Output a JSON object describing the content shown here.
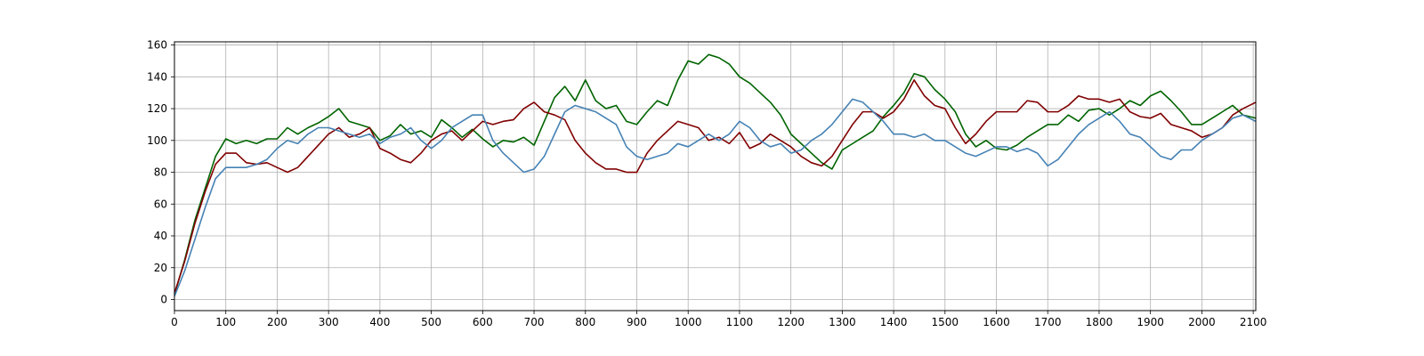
{
  "chart_data": {
    "type": "line",
    "title": "",
    "xlabel": "",
    "ylabel": "",
    "xlim": [
      0,
      2105
    ],
    "ylim": [
      -7,
      162
    ],
    "grid": true,
    "legend": "none",
    "x_ticks": [
      0,
      100,
      200,
      300,
      400,
      500,
      600,
      700,
      800,
      900,
      1000,
      1100,
      1200,
      1300,
      1400,
      1500,
      1600,
      1700,
      1800,
      1900,
      2000,
      2100
    ],
    "y_ticks": [
      0,
      20,
      40,
      60,
      80,
      100,
      120,
      140,
      160
    ],
    "x_tick_labels": [
      "0",
      "100",
      "200",
      "300",
      "400",
      "500",
      "600",
      "700",
      "800",
      "900",
      "1000",
      "1100",
      "1200",
      "1300",
      "1400",
      "1500",
      "1600",
      "1700",
      "1800",
      "1900",
      "2000",
      "2100"
    ],
    "y_tick_labels": [
      "0",
      "20",
      "40",
      "60",
      "80",
      "100",
      "120",
      "140",
      "160"
    ],
    "series": [
      {
        "color": "#006400",
        "x": [
          0,
          20,
          40,
          60,
          80,
          100,
          120,
          140,
          160,
          180,
          200,
          220,
          240,
          260,
          280,
          300,
          320,
          340,
          360,
          380,
          400,
          420,
          440,
          460,
          480,
          500,
          520,
          540,
          560,
          580,
          600,
          620,
          640,
          660,
          680,
          700,
          720,
          740,
          760,
          780,
          800,
          820,
          840,
          860,
          880,
          900,
          920,
          940,
          960,
          980,
          1000,
          1020,
          1040,
          1060,
          1080,
          1100,
          1120,
          1140,
          1160,
          1180,
          1200,
          1220,
          1240,
          1260,
          1280,
          1300,
          1320,
          1340,
          1360,
          1380,
          1400,
          1420,
          1440,
          1460,
          1480,
          1500,
          1520,
          1540,
          1560,
          1580,
          1600,
          1620,
          1640,
          1660,
          1680,
          1700,
          1720,
          1740,
          1760,
          1780,
          1800,
          1820,
          1840,
          1860,
          1880,
          1900,
          1920,
          1940,
          1960,
          1980,
          2000,
          2020,
          2040,
          2060,
          2080,
          2105
        ],
        "y": [
          3,
          25,
          50,
          70,
          90,
          101,
          98,
          100,
          98,
          101,
          101,
          108,
          104,
          108,
          111,
          115,
          120,
          112,
          110,
          108,
          100,
          103,
          110,
          104,
          106,
          102,
          113,
          108,
          102,
          107,
          101,
          96,
          100,
          99,
          102,
          97,
          112,
          127,
          134,
          125,
          138,
          125,
          120,
          122,
          112,
          110,
          118,
          125,
          122,
          138,
          150,
          148,
          154,
          152,
          148,
          140,
          136,
          130,
          124,
          116,
          104,
          98,
          92,
          86,
          82,
          94,
          98,
          102,
          106,
          115,
          122,
          130,
          142,
          140,
          132,
          126,
          118,
          104,
          96,
          100,
          95,
          94,
          97,
          102,
          106,
          110,
          110,
          116,
          112,
          119,
          120,
          116,
          120,
          125,
          122,
          128,
          131,
          125,
          118,
          110,
          110,
          114,
          118,
          122,
          116,
          114
        ]
      },
      {
        "color": "#800000",
        "x": [
          0,
          20,
          40,
          60,
          80,
          100,
          120,
          140,
          160,
          180,
          200,
          220,
          240,
          260,
          280,
          300,
          320,
          340,
          360,
          380,
          400,
          420,
          440,
          460,
          480,
          500,
          520,
          540,
          560,
          580,
          600,
          620,
          640,
          660,
          680,
          700,
          720,
          740,
          760,
          780,
          800,
          820,
          840,
          860,
          880,
          900,
          920,
          940,
          960,
          980,
          1000,
          1020,
          1040,
          1060,
          1080,
          1100,
          1120,
          1140,
          1160,
          1180,
          1200,
          1220,
          1240,
          1260,
          1280,
          1300,
          1320,
          1340,
          1360,
          1380,
          1400,
          1420,
          1440,
          1460,
          1480,
          1500,
          1520,
          1540,
          1560,
          1580,
          1600,
          1620,
          1640,
          1660,
          1680,
          1700,
          1720,
          1740,
          1760,
          1780,
          1800,
          1820,
          1840,
          1860,
          1880,
          1900,
          1920,
          1940,
          1960,
          1980,
          2000,
          2020,
          2040,
          2060,
          2080,
          2105
        ],
        "y": [
          4,
          24,
          48,
          68,
          85,
          92,
          92,
          86,
          85,
          86,
          83,
          80,
          83,
          90,
          97,
          104,
          108,
          102,
          104,
          108,
          95,
          92,
          88,
          86,
          92,
          100,
          104,
          106,
          100,
          106,
          112,
          110,
          112,
          113,
          120,
          124,
          118,
          116,
          113,
          100,
          92,
          86,
          82,
          82,
          80,
          80,
          92,
          100,
          106,
          112,
          110,
          108,
          100,
          102,
          98,
          105,
          95,
          98,
          104,
          100,
          96,
          90,
          86,
          84,
          90,
          100,
          110,
          118,
          118,
          114,
          118,
          126,
          138,
          128,
          122,
          120,
          108,
          98,
          104,
          112,
          118,
          118,
          118,
          125,
          124,
          118,
          118,
          122,
          128,
          126,
          126,
          124,
          126,
          118,
          115,
          114,
          117,
          110,
          108,
          106,
          102,
          104,
          108,
          116,
          120,
          124
        ]
      },
      {
        "color": "#4682b4",
        "x": [
          0,
          20,
          40,
          60,
          80,
          100,
          120,
          140,
          160,
          180,
          200,
          220,
          240,
          260,
          280,
          300,
          320,
          340,
          360,
          380,
          400,
          420,
          440,
          460,
          480,
          500,
          520,
          540,
          560,
          580,
          600,
          620,
          640,
          660,
          680,
          700,
          720,
          740,
          760,
          780,
          800,
          820,
          840,
          860,
          880,
          900,
          920,
          940,
          960,
          980,
          1000,
          1020,
          1040,
          1060,
          1080,
          1100,
          1120,
          1140,
          1160,
          1180,
          1200,
          1220,
          1240,
          1260,
          1280,
          1300,
          1320,
          1340,
          1360,
          1380,
          1400,
          1420,
          1440,
          1460,
          1480,
          1500,
          1520,
          1540,
          1560,
          1580,
          1600,
          1620,
          1640,
          1660,
          1680,
          1700,
          1720,
          1740,
          1760,
          1780,
          1800,
          1820,
          1840,
          1860,
          1880,
          1900,
          1920,
          1940,
          1960,
          1980,
          2000,
          2020,
          2040,
          2060,
          2080,
          2105
        ],
        "y": [
          2,
          18,
          38,
          58,
          76,
          83,
          83,
          83,
          85,
          88,
          95,
          100,
          98,
          104,
          108,
          108,
          106,
          104,
          102,
          104,
          98,
          102,
          104,
          108,
          100,
          95,
          100,
          108,
          112,
          116,
          116,
          100,
          92,
          86,
          80,
          82,
          90,
          104,
          118,
          122,
          120,
          118,
          114,
          110,
          96,
          90,
          88,
          90,
          92,
          98,
          96,
          100,
          104,
          100,
          104,
          112,
          108,
          100,
          96,
          98,
          92,
          94,
          100,
          104,
          110,
          118,
          126,
          124,
          118,
          112,
          104,
          104,
          102,
          104,
          100,
          100,
          96,
          92,
          90,
          93,
          96,
          96,
          93,
          95,
          92,
          84,
          88,
          96,
          104,
          110,
          114,
          118,
          112,
          104,
          102,
          96,
          90,
          88,
          94,
          94,
          100,
          104,
          108,
          114,
          116,
          112
        ]
      }
    ]
  }
}
